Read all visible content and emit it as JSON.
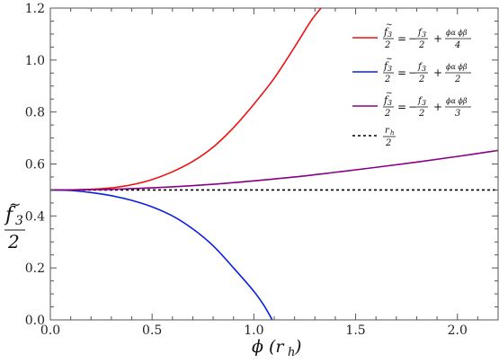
{
  "chart_data": {
    "type": "line",
    "xlabel": "ϕ (r",
    "xlabel_sub": "h",
    "xlabel_close": ")",
    "ylabel": {
      "num": "f",
      "num_sub": "3",
      "tilde": "~",
      "den": "2"
    },
    "xlim": [
      0,
      2.2
    ],
    "ylim": [
      0,
      1.2
    ],
    "xticks": [
      0.0,
      0.5,
      1.0,
      1.5,
      2.0
    ],
    "xtick_labels": [
      "0.0",
      "0.5",
      "1.0",
      "1.5",
      "2.0"
    ],
    "yticks": [
      0.0,
      0.2,
      0.4,
      0.6,
      0.8,
      1.0,
      1.2
    ],
    "ytick_labels": [
      "0.0",
      "0.2",
      "0.4",
      "0.6",
      "0.8",
      "1.0",
      "1.2"
    ],
    "grid": false,
    "legend_position": "top-right",
    "series": [
      {
        "color": "#ee1111",
        "style": "solid",
        "legend": {
          "sign": "−",
          "coef": "",
          "f_sub": "3",
          "den1": "2",
          "rhs_num": "ϕα ϕβ",
          "rhs_den": "4"
        },
        "x": [
          0,
          0.1,
          0.2,
          0.3,
          0.4,
          0.5,
          0.6,
          0.7,
          0.8,
          0.9,
          1.0,
          1.1,
          1.2,
          1.28,
          1.33
        ],
        "y": [
          0.5,
          0.5005,
          0.5025,
          0.508,
          0.52,
          0.54,
          0.57,
          0.61,
          0.665,
          0.74,
          0.83,
          0.93,
          1.05,
          1.15,
          1.2
        ]
      },
      {
        "color": "#0a1ee6",
        "style": "solid",
        "legend": {
          "sign": "−",
          "coef": "",
          "f_sub": "3",
          "den1": "2",
          "rhs_num": "ϕα ϕβ",
          "rhs_den": "2"
        },
        "x": [
          0,
          0.1,
          0.2,
          0.3,
          0.4,
          0.5,
          0.6,
          0.7,
          0.8,
          0.9,
          1.0,
          1.05,
          1.09
        ],
        "y": [
          0.5,
          0.498,
          0.49,
          0.478,
          0.46,
          0.435,
          0.4,
          0.35,
          0.285,
          0.2,
          0.11,
          0.055,
          0.0
        ]
      },
      {
        "color": "#880088",
        "style": "solid",
        "legend": {
          "sign": "−",
          "coef": "",
          "f_sub": "3",
          "den1": "2",
          "rhs_num": "ϕα ϕβ",
          "rhs_den": "3"
        },
        "x": [
          0,
          0.2,
          0.4,
          0.6,
          0.8,
          1.0,
          1.2,
          1.4,
          1.6,
          1.8,
          2.0,
          2.2
        ],
        "y": [
          0.5,
          0.501,
          0.505,
          0.512,
          0.522,
          0.535,
          0.55,
          0.568,
          0.587,
          0.607,
          0.629,
          0.652
        ]
      },
      {
        "color": "#000000",
        "style": "dashed",
        "legend": {
          "rh": "r",
          "rh_sub": "h",
          "den": "2"
        },
        "x": [
          0,
          2.2
        ],
        "y": [
          0.5,
          0.5
        ]
      }
    ]
  }
}
